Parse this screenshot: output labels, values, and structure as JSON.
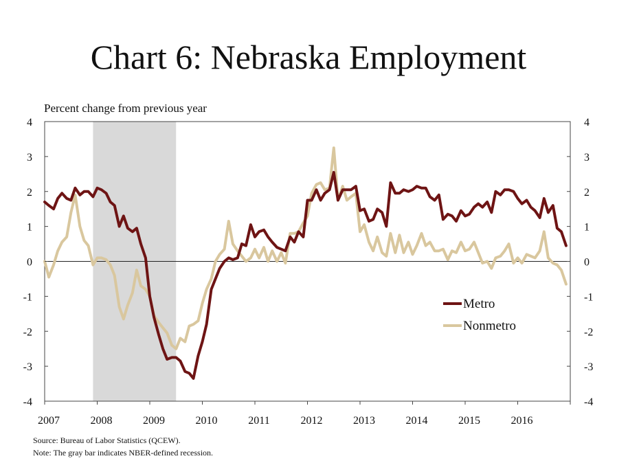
{
  "chart_data": {
    "type": "line",
    "title": "Chart 6: Nebraska Employment",
    "ylabel": "Percent change from previous year",
    "ylim": [
      -4,
      4
    ],
    "yticks": [
      4,
      3,
      2,
      1,
      0,
      -1,
      -2,
      -3,
      -4
    ],
    "yticks_right": [
      4,
      3,
      2,
      1,
      0,
      -1,
      -2,
      -3,
      -4
    ],
    "xlim": [
      2007.0,
      2017.0
    ],
    "xticks": [
      "2007",
      "2008",
      "2009",
      "2010",
      "2011",
      "2012",
      "2013",
      "2014",
      "2015",
      "2016"
    ],
    "grid": false,
    "legend_position": "right",
    "recession": {
      "start": 2007.92,
      "end": 2009.5,
      "color": "#d9d9d9"
    },
    "series": [
      {
        "name": "Metro",
        "color": "#6e1414",
        "x": [
          2007.0,
          2007.08,
          2007.17,
          2007.25,
          2007.33,
          2007.42,
          2007.5,
          2007.58,
          2007.67,
          2007.75,
          2007.83,
          2007.92,
          2008.0,
          2008.08,
          2008.17,
          2008.25,
          2008.33,
          2008.42,
          2008.5,
          2008.58,
          2008.67,
          2008.75,
          2008.83,
          2008.92,
          2009.0,
          2009.08,
          2009.17,
          2009.25,
          2009.33,
          2009.42,
          2009.5,
          2009.58,
          2009.67,
          2009.75,
          2009.83,
          2009.92,
          2010.0,
          2010.08,
          2010.17,
          2010.25,
          2010.33,
          2010.42,
          2010.5,
          2010.58,
          2010.67,
          2010.75,
          2010.83,
          2010.92,
          2011.0,
          2011.08,
          2011.17,
          2011.25,
          2011.33,
          2011.42,
          2011.5,
          2011.58,
          2011.67,
          2011.75,
          2011.83,
          2011.92,
          2012.0,
          2012.08,
          2012.17,
          2012.25,
          2012.33,
          2012.42,
          2012.5,
          2012.58,
          2012.67,
          2012.75,
          2012.83,
          2012.92,
          2013.0,
          2013.08,
          2013.17,
          2013.25,
          2013.33,
          2013.42,
          2013.5,
          2013.58,
          2013.67,
          2013.75,
          2013.83,
          2013.92,
          2014.0,
          2014.08,
          2014.17,
          2014.25,
          2014.33,
          2014.42,
          2014.5,
          2014.58,
          2014.67,
          2014.75,
          2014.83,
          2014.92,
          2015.0,
          2015.08,
          2015.17,
          2015.25,
          2015.33,
          2015.42,
          2015.5,
          2015.58,
          2015.67,
          2015.75,
          2015.83,
          2015.92,
          2016.0,
          2016.08,
          2016.17,
          2016.25,
          2016.33,
          2016.42,
          2016.5,
          2016.58,
          2016.67,
          2016.75,
          2016.83,
          2016.92
        ],
        "values": [
          1.7,
          1.6,
          1.5,
          1.8,
          1.95,
          1.8,
          1.75,
          2.1,
          1.9,
          2.0,
          2.0,
          1.85,
          2.1,
          2.05,
          1.95,
          1.7,
          1.6,
          1.0,
          1.3,
          0.95,
          0.85,
          0.95,
          0.5,
          0.1,
          -1.0,
          -1.6,
          -2.1,
          -2.5,
          -2.8,
          -2.75,
          -2.75,
          -2.85,
          -3.15,
          -3.2,
          -3.35,
          -2.7,
          -2.3,
          -1.8,
          -0.8,
          -0.5,
          -0.2,
          0.0,
          0.1,
          0.05,
          0.1,
          0.5,
          0.45,
          1.05,
          0.7,
          0.85,
          0.9,
          0.7,
          0.55,
          0.4,
          0.35,
          0.3,
          0.7,
          0.55,
          0.85,
          0.7,
          1.75,
          1.75,
          2.05,
          1.75,
          1.95,
          2.05,
          2.55,
          1.75,
          2.05,
          2.05,
          2.05,
          2.15,
          1.45,
          1.5,
          1.15,
          1.2,
          1.5,
          1.4,
          1.0,
          2.25,
          1.95,
          1.95,
          2.05,
          2.0,
          2.05,
          2.15,
          2.1,
          2.1,
          1.85,
          1.75,
          1.9,
          1.2,
          1.35,
          1.3,
          1.15,
          1.45,
          1.3,
          1.35,
          1.55,
          1.65,
          1.55,
          1.7,
          1.4,
          2.0,
          1.9,
          2.05,
          2.05,
          2.0,
          1.8,
          1.65,
          1.75,
          1.55,
          1.45,
          1.25,
          1.8,
          1.4,
          1.6,
          0.95,
          0.85,
          0.45
        ]
      },
      {
        "name": "Nonmetro",
        "color": "#d9c79e",
        "x": [
          2007.0,
          2007.08,
          2007.17,
          2007.25,
          2007.33,
          2007.42,
          2007.5,
          2007.58,
          2007.67,
          2007.75,
          2007.83,
          2007.92,
          2008.0,
          2008.08,
          2008.17,
          2008.25,
          2008.33,
          2008.42,
          2008.5,
          2008.58,
          2008.67,
          2008.75,
          2008.83,
          2008.92,
          2009.0,
          2009.08,
          2009.17,
          2009.25,
          2009.33,
          2009.42,
          2009.5,
          2009.58,
          2009.67,
          2009.75,
          2009.83,
          2009.92,
          2010.0,
          2010.08,
          2010.17,
          2010.25,
          2010.33,
          2010.42,
          2010.5,
          2010.58,
          2010.67,
          2010.75,
          2010.83,
          2010.92,
          2011.0,
          2011.08,
          2011.17,
          2011.25,
          2011.33,
          2011.42,
          2011.5,
          2011.58,
          2011.67,
          2011.75,
          2011.83,
          2011.92,
          2012.0,
          2012.08,
          2012.17,
          2012.25,
          2012.33,
          2012.42,
          2012.5,
          2012.58,
          2012.67,
          2012.75,
          2012.83,
          2012.92,
          2013.0,
          2013.08,
          2013.17,
          2013.25,
          2013.33,
          2013.42,
          2013.5,
          2013.58,
          2013.67,
          2013.75,
          2013.83,
          2013.92,
          2014.0,
          2014.08,
          2014.17,
          2014.25,
          2014.33,
          2014.42,
          2014.5,
          2014.58,
          2014.67,
          2014.75,
          2014.83,
          2014.92,
          2015.0,
          2015.08,
          2015.17,
          2015.25,
          2015.33,
          2015.42,
          2015.5,
          2015.58,
          2015.67,
          2015.75,
          2015.83,
          2015.92,
          2016.0,
          2016.08,
          2016.17,
          2016.25,
          2016.33,
          2016.42,
          2016.5,
          2016.58,
          2016.67,
          2016.75,
          2016.83,
          2016.92
        ],
        "values": [
          0.0,
          -0.45,
          -0.1,
          0.3,
          0.55,
          0.7,
          1.4,
          1.9,
          1.0,
          0.6,
          0.45,
          -0.1,
          0.1,
          0.1,
          0.05,
          -0.1,
          -0.4,
          -1.3,
          -1.65,
          -1.25,
          -0.9,
          -0.25,
          -0.7,
          -0.8,
          -1.0,
          -1.55,
          -1.75,
          -1.9,
          -2.05,
          -2.4,
          -2.5,
          -2.2,
          -2.3,
          -1.85,
          -1.8,
          -1.7,
          -1.2,
          -0.8,
          -0.5,
          0.0,
          0.2,
          0.35,
          1.15,
          0.5,
          0.3,
          0.15,
          0.0,
          0.1,
          0.35,
          0.1,
          0.4,
          0.0,
          0.3,
          0.0,
          0.25,
          -0.05,
          0.8,
          0.8,
          0.85,
          1.1,
          1.3,
          1.95,
          2.2,
          2.25,
          2.05,
          2.1,
          3.25,
          1.75,
          2.15,
          1.75,
          1.85,
          1.95,
          0.85,
          1.05,
          0.55,
          0.3,
          0.7,
          0.25,
          0.15,
          0.8,
          0.25,
          0.75,
          0.25,
          0.55,
          0.2,
          0.45,
          0.8,
          0.45,
          0.55,
          0.3,
          0.3,
          0.35,
          0.05,
          0.3,
          0.25,
          0.55,
          0.3,
          0.35,
          0.55,
          0.25,
          -0.05,
          0.0,
          -0.2,
          0.1,
          0.15,
          0.3,
          0.5,
          -0.05,
          0.1,
          -0.05,
          0.2,
          0.15,
          0.1,
          0.3,
          0.85,
          0.1,
          -0.05,
          -0.1,
          -0.25,
          -0.65
        ]
      }
    ],
    "source": "Source: Bureau of Labor Statistics (QCEW).",
    "note": "Note: The gray bar indicates NBER-defined recession."
  }
}
